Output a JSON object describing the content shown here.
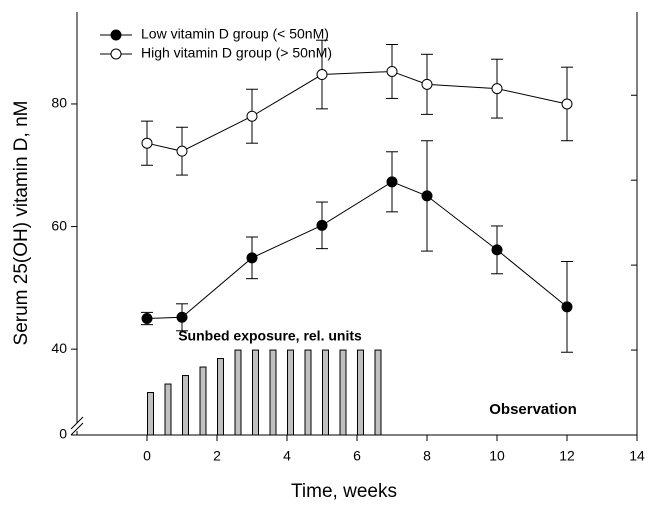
{
  "chart_data": {
    "type": "line",
    "ylabel": "Serum 25(OH) vitamin D, nM",
    "xlabel": "Time, weeks",
    "xlim": [
      -2,
      14
    ],
    "xticks": [
      0,
      2,
      4,
      6,
      8,
      10,
      12,
      14
    ],
    "ylim": [
      0,
      95
    ],
    "ybreak": [
      2,
      28
    ],
    "yticks": [
      0,
      40,
      60,
      80
    ],
    "y2lim": [
      0,
      4.98
    ],
    "y2ticks": [
      0,
      1,
      2,
      3,
      4
    ],
    "legend": "upper left",
    "series": [
      {
        "name": "Low vitamin D group (< 50nM)",
        "marker": "filled",
        "color": "#000000",
        "x": [
          0,
          1,
          3,
          5,
          7,
          8,
          10,
          12
        ],
        "values": [
          45,
          45.2,
          54.9,
          60.2,
          67.3,
          65,
          56.2,
          46.9
        ],
        "errors": [
          1,
          2.2,
          3.4,
          3.8,
          4.9,
          9,
          3.9,
          7.4
        ]
      },
      {
        "name": "High vitamin D group (> 50nM)",
        "marker": "open",
        "color": "#000000",
        "x": [
          0,
          1,
          3,
          5,
          7,
          8,
          10,
          12
        ],
        "values": [
          73.6,
          72.3,
          78,
          84.8,
          85.3,
          83.2,
          82.5,
          80
        ],
        "errors": [
          3.6,
          3.9,
          4.4,
          5.6,
          4.4,
          4.9,
          4.8,
          6
        ]
      }
    ],
    "bars": {
      "name": "Sunbed exposure, rel. units",
      "axis": "y2",
      "color": "#c0c0c0",
      "x": [
        0.1,
        0.6,
        1.1,
        1.6,
        2.1,
        2.6,
        3.1,
        3.6,
        4.1,
        4.6,
        5.1,
        5.6,
        6.1,
        6.6
      ],
      "values": [
        0.5,
        0.6,
        0.7,
        0.8,
        0.9,
        1,
        1,
        1,
        1,
        1,
        1,
        1,
        1,
        1
      ]
    },
    "annotations": [
      "Observation"
    ]
  }
}
